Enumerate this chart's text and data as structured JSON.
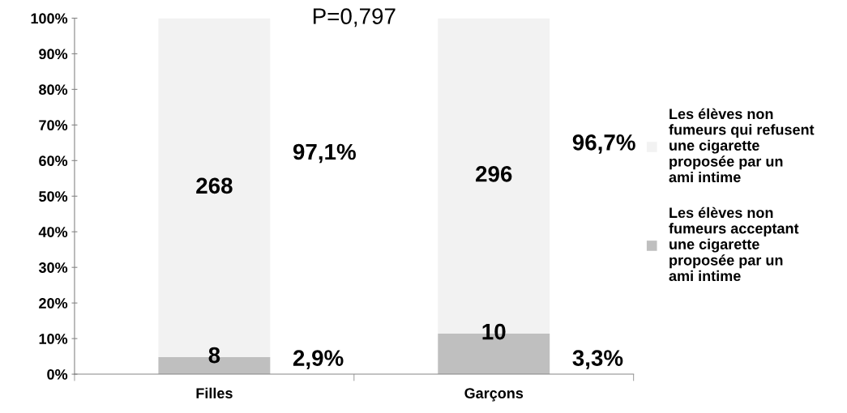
{
  "chart_data": {
    "type": "bar",
    "stacked": true,
    "categories": [
      "Filles",
      "Garçons"
    ],
    "series": [
      {
        "name": "Les élèves non\nfumeurs acceptant\nune cigarette\nproposée par un\nami intime",
        "color": "#bfbfbf",
        "values": [
          4.8,
          11.4
        ]
      },
      {
        "name": "Les élèves non\nfumeurs qui refusent\nune cigarette\nproposée par un\nami intime",
        "color": "#f2f2f2",
        "values": [
          95.2,
          88.6
        ]
      }
    ],
    "ylim": [
      0,
      100
    ],
    "yticks": [
      {
        "value": 0,
        "label": "0%"
      },
      {
        "value": 10,
        "label": "10%"
      },
      {
        "value": 20,
        "label": "20%"
      },
      {
        "value": 30,
        "label": "30%"
      },
      {
        "value": 40,
        "label": "40%"
      },
      {
        "value": 50,
        "label": "50%"
      },
      {
        "value": 60,
        "label": "60%"
      },
      {
        "value": 70,
        "label": "70%"
      },
      {
        "value": 80,
        "label": "80%"
      },
      {
        "value": 90,
        "label": "90%"
      },
      {
        "value": 100,
        "label": "100%"
      }
    ],
    "grid": false,
    "legend": "right",
    "annotations": [
      "8",
      "2,9%",
      "268",
      "97,1%",
      "10",
      "3,3%",
      "296",
      "96,7%",
      "P=0,797"
    ]
  }
}
